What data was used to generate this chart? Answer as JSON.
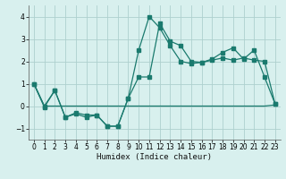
{
  "x": [
    0,
    1,
    2,
    3,
    4,
    5,
    6,
    7,
    8,
    9,
    10,
    11,
    12,
    13,
    14,
    15,
    16,
    17,
    18,
    19,
    20,
    21,
    22,
    23
  ],
  "line1_jagged": [
    1.0,
    -0.05,
    0.7,
    -0.5,
    -0.35,
    -0.5,
    -0.4,
    -0.9,
    -0.9,
    0.35,
    2.5,
    4.0,
    3.5,
    2.7,
    2.0,
    1.9,
    1.95,
    2.1,
    2.4,
    2.6,
    2.1,
    2.5,
    1.3,
    0.1
  ],
  "line2_diagonal": [
    1.0,
    0.0,
    0.7,
    -0.5,
    -0.3,
    -0.4,
    -0.4,
    -0.9,
    -0.9,
    0.35,
    1.3,
    1.3,
    3.7,
    2.9,
    2.7,
    2.0,
    1.95,
    2.05,
    2.15,
    2.05,
    2.15,
    2.05,
    2.0,
    0.1
  ],
  "line3_flat": [
    1.0,
    0.0,
    0.0,
    0.0,
    0.0,
    0.0,
    0.0,
    0.0,
    0.0,
    0.0,
    0.0,
    0.0,
    0.0,
    0.0,
    0.0,
    0.0,
    0.0,
    0.0,
    0.0,
    0.0,
    0.0,
    0.0,
    0.0,
    0.05
  ],
  "line_color": "#1a7a6e",
  "bg_color": "#d8f0ee",
  "grid_color": "#aed0ce",
  "xlabel": "Humidex (Indice chaleur)",
  "ylim": [
    -1.5,
    4.5
  ],
  "xlim": [
    -0.5,
    23.5
  ],
  "yticks": [
    -1,
    0,
    1,
    2,
    3,
    4
  ],
  "xticks": [
    0,
    1,
    2,
    3,
    4,
    5,
    6,
    7,
    8,
    9,
    10,
    11,
    12,
    13,
    14,
    15,
    16,
    17,
    18,
    19,
    20,
    21,
    22,
    23
  ]
}
